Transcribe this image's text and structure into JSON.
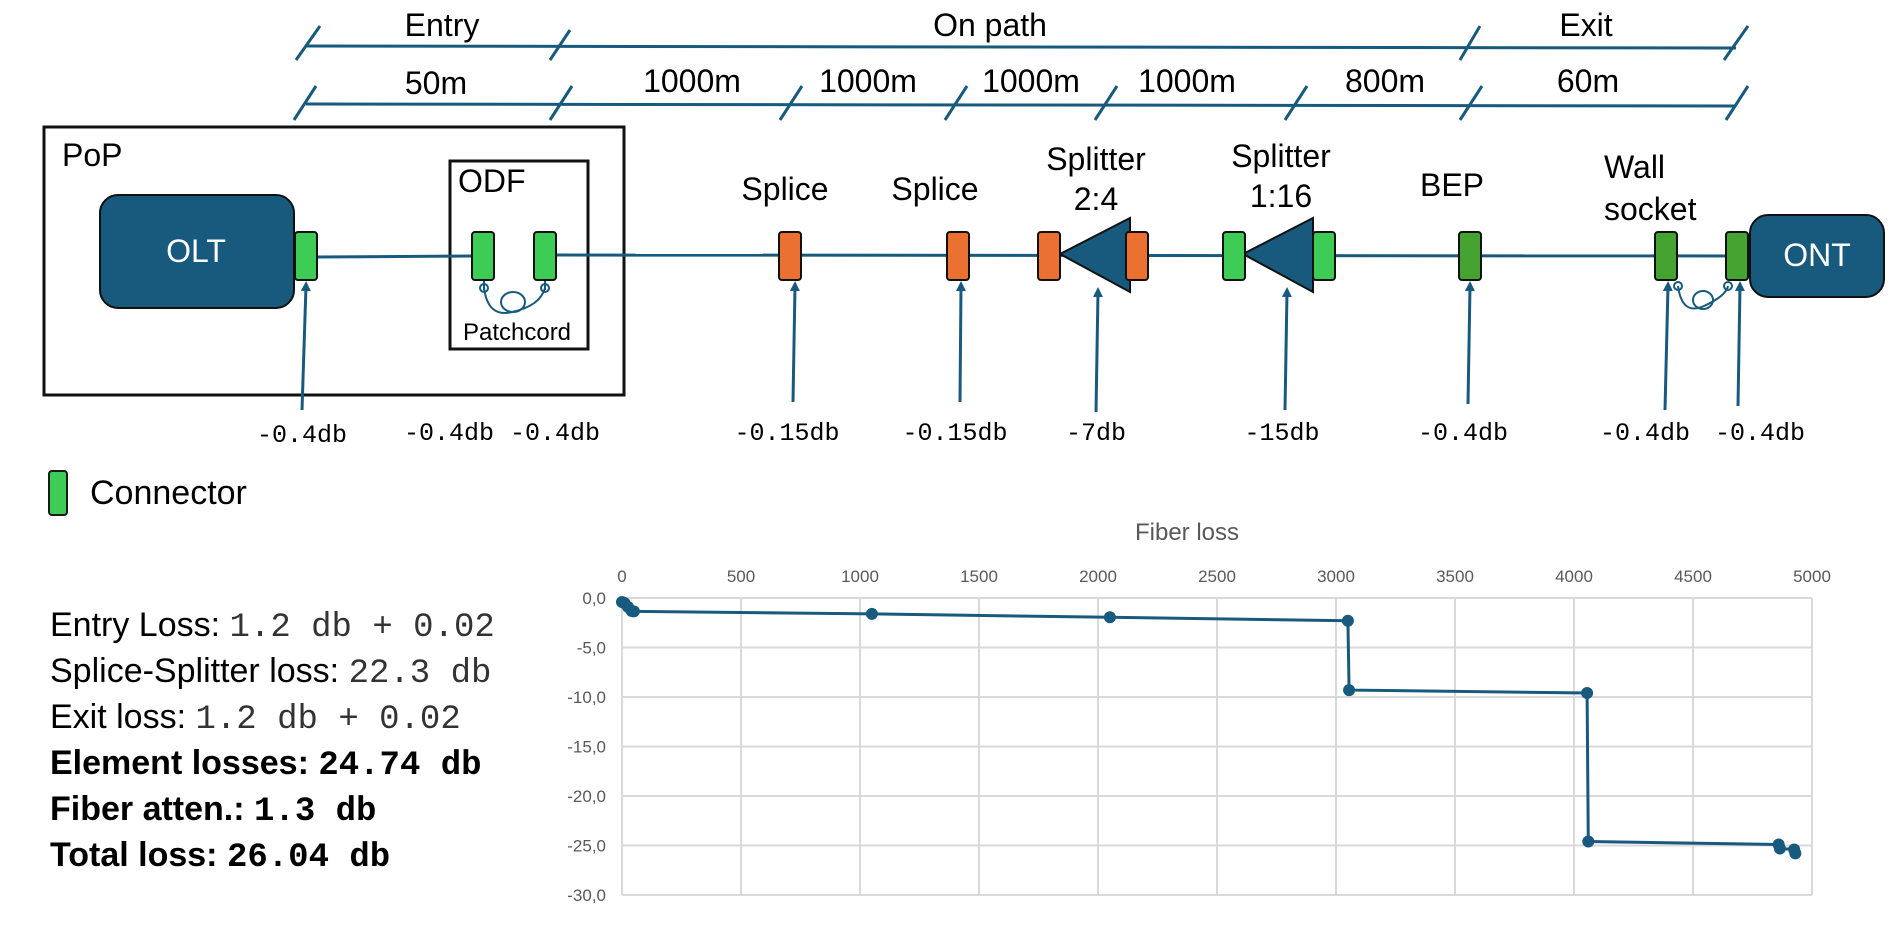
{
  "spans": {
    "entry": "Entry",
    "on_path": "On path",
    "exit": "Exit"
  },
  "distances": [
    "50m",
    "1000m",
    "1000m",
    "1000m",
    "1000m",
    "800m",
    "60m"
  ],
  "pop": {
    "label": "PoP",
    "olt": "OLT",
    "odf": "ODF",
    "patchcord": "Patchcord"
  },
  "elements": {
    "splice1": "Splice",
    "splice2": "Splice",
    "splitter1_line1": "Splitter",
    "splitter1_line2": "2:4",
    "splitter2_line1": "Splitter",
    "splitter2_line2": "1:16",
    "bep": "BEP",
    "wall_line1": "Wall",
    "wall_line2": "socket",
    "ont": "ONT"
  },
  "losses": [
    "-0.4db",
    "-0.4db",
    "-0.4db",
    "-0.15db",
    "-0.15db",
    "-7db",
    "-15db",
    "-0.4db",
    "-0.4db",
    "-0.4db"
  ],
  "legend": {
    "connector": "Connector"
  },
  "colors": {
    "primary": "#185a7d",
    "connector": "#3dcc55",
    "connector_dark": "#45a332",
    "splice": "#eb7133"
  },
  "summary": {
    "entry_label": "Entry Loss:",
    "entry_value": "1.2 db + 0.02",
    "splice_label": "Splice-Splitter loss:",
    "splice_value": "22.3 db",
    "exit_label": "Exit loss:",
    "exit_value": "1.2 db + 0.02",
    "element_label": "Element losses:",
    "element_value": "24.74 db",
    "fiber_label": "Fiber atten.:",
    "fiber_value": "1.3 db",
    "total_label": "Total loss:",
    "total_value": "26.04 db"
  },
  "chart_data": {
    "type": "line",
    "title": "Fiber loss",
    "xlabel": "",
    "ylabel": "",
    "xlim": [
      0,
      5000
    ],
    "ylim": [
      -30,
      0
    ],
    "x_ticks": [
      "0",
      "500",
      "1000",
      "1500",
      "2000",
      "2500",
      "3000",
      "3500",
      "4000",
      "4500",
      "5000"
    ],
    "y_ticks": [
      "0,0",
      "-5,0",
      "-10,0",
      "-15,0",
      "-20,0",
      "-25,0",
      "-30,0"
    ],
    "grid": true,
    "series": [
      {
        "color": "#185a7d",
        "x": [
          0,
          10,
          25,
          40,
          50,
          1050,
          2050,
          3050,
          3055,
          4055,
          4060,
          4860,
          4865,
          4925,
          4930
        ],
        "y": [
          -0.4,
          -0.5,
          -0.9,
          -1.3,
          -1.35,
          -1.6,
          -1.95,
          -2.3,
          -9.3,
          -9.6,
          -24.6,
          -24.9,
          -25.3,
          -25.4,
          -25.8
        ]
      }
    ]
  }
}
